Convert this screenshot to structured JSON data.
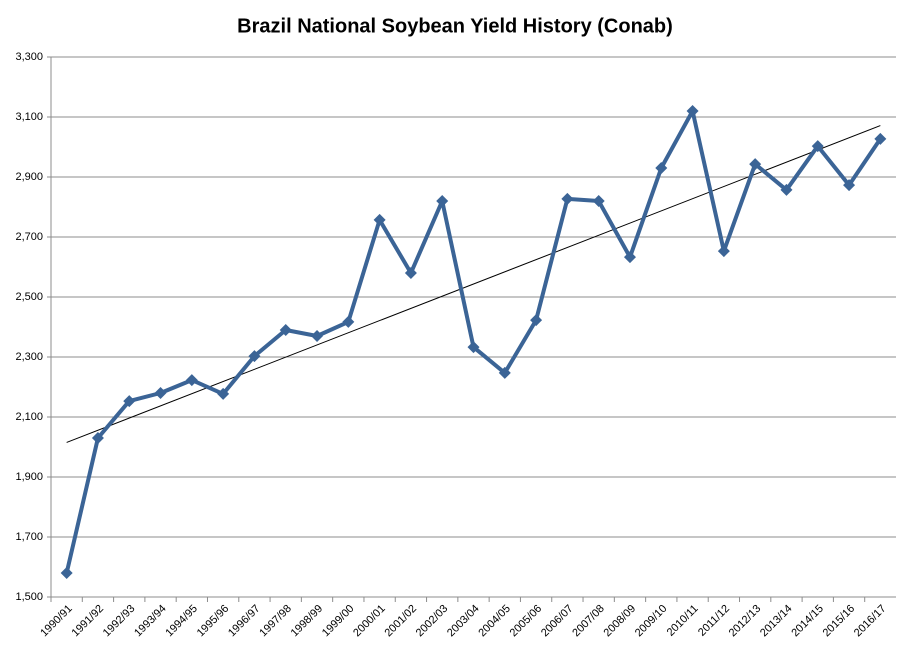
{
  "chart_data": {
    "type": "line",
    "title": "Brazil National Soybean Yield History (Conab)",
    "categories": [
      "1990/91",
      "1991/92",
      "1992/93",
      "1993/94",
      "1994/95",
      "1995/96",
      "1996/97",
      "1997/98",
      "1998/99",
      "1999/00",
      "2000/01",
      "2001/02",
      "2002/03",
      "2003/04",
      "2004/05",
      "2005/06",
      "2006/07",
      "2007/08",
      "2008/09",
      "2009/10",
      "2010/11",
      "2011/12",
      "2012/13",
      "2013/14",
      "2014/15",
      "2015/16",
      "2016/17"
    ],
    "series": [
      {
        "color": "#3b6496",
        "values": [
          1580,
          2030,
          2153,
          2180,
          2223,
          2177,
          2303,
          2390,
          2370,
          2417,
          2757,
          2580,
          2820,
          2333,
          2247,
          2423,
          2827,
          2820,
          2633,
          2930,
          3120,
          2653,
          2943,
          2857,
          3003,
          2873,
          3027
        ]
      }
    ],
    "ylim": [
      1500,
      3300
    ],
    "yticks": [
      {
        "value": 1500,
        "label": "1,500"
      },
      {
        "value": 1700,
        "label": "1,700"
      },
      {
        "value": 1900,
        "label": "1,900"
      },
      {
        "value": 2100,
        "label": "2,100"
      },
      {
        "value": 2300,
        "label": "2,300"
      },
      {
        "value": 2500,
        "label": "2,500"
      },
      {
        "value": 2700,
        "label": "2,700"
      },
      {
        "value": 2900,
        "label": "2,900"
      },
      {
        "value": 3100,
        "label": "3,100"
      },
      {
        "value": 3300,
        "label": "3,300"
      }
    ],
    "grid": true,
    "trendline": true,
    "trendline_color": "#000000"
  }
}
